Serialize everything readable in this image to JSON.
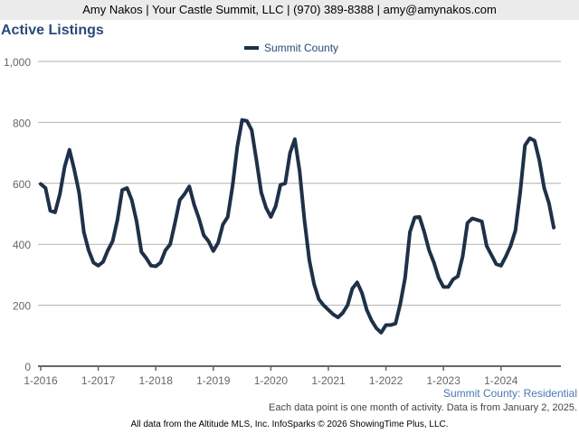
{
  "header": "Amy Nakos | Your Castle Summit, LLC | (970) 389-8388 | amy@amynakos.com",
  "subtitle": "Summit County: Residential",
  "note": "Each data point is one month of activity. Data is from January 2, 2025.",
  "footer": "All data from the Altitude MLS, Inc. InfoSparks © 2026 ShowingTime Plus, LLC.",
  "chart_data": {
    "type": "line",
    "title": "Active Listings",
    "xlabel": "",
    "ylabel": "",
    "ylim": [
      0,
      1000
    ],
    "yticks": [
      "0",
      "200",
      "400",
      "600",
      "800",
      "1,000"
    ],
    "xticks": [
      "1-2016",
      "1-2017",
      "1-2018",
      "1-2019",
      "1-2020",
      "1-2021",
      "1-2022",
      "1-2023",
      "1-2024"
    ],
    "x_start": "2016-01",
    "x_end": "2024-12",
    "grid": true,
    "legend": "top-center",
    "color": "#1f3049",
    "series": [
      {
        "name": "Summit County",
        "values": [
          598,
          585,
          510,
          505,
          565,
          655,
          710,
          645,
          570,
          440,
          380,
          340,
          330,
          342,
          380,
          410,
          480,
          578,
          585,
          545,
          475,
          375,
          355,
          330,
          328,
          340,
          380,
          400,
          470,
          545,
          565,
          590,
          530,
          485,
          430,
          410,
          378,
          405,
          465,
          490,
          590,
          720,
          808,
          805,
          775,
          675,
          570,
          520,
          490,
          525,
          595,
          600,
          700,
          745,
          640,
          480,
          350,
          270,
          220,
          200,
          185,
          170,
          160,
          175,
          200,
          255,
          275,
          240,
          185,
          150,
          125,
          110,
          135,
          135,
          140,
          205,
          290,
          440,
          488,
          490,
          440,
          380,
          340,
          290,
          260,
          260,
          285,
          295,
          360,
          470,
          485,
          480,
          475,
          395,
          365,
          335,
          330,
          360,
          395,
          445,
          570,
          725,
          748,
          740,
          675,
          585,
          535,
          455
        ]
      }
    ]
  }
}
